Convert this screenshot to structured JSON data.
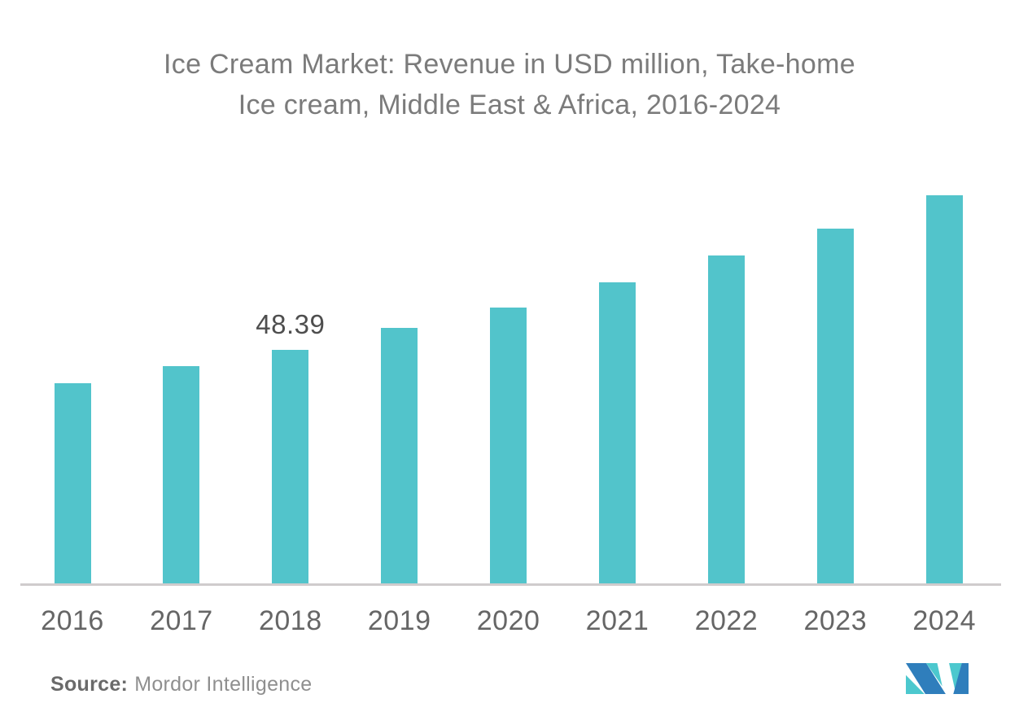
{
  "title": {
    "line1": "Ice Cream Market: Revenue in USD million, Take-home",
    "line2": "Ice cream, Middle East & Africa, 2016-2024"
  },
  "source": {
    "label": "Source:",
    "name": "Mordor Intelligence"
  },
  "logo": {
    "name": "mordor-intelligence-logo",
    "blue": "#2F7EBC",
    "teal": "#4CC8CE"
  },
  "chart_data": {
    "type": "bar",
    "title": "Ice Cream Market: Revenue in USD million, Take-home Ice cream, Middle East & Africa, 2016-2024",
    "categories": [
      "2016",
      "2017",
      "2018",
      "2019",
      "2020",
      "2021",
      "2022",
      "2023",
      "2024"
    ],
    "values": [
      41.5,
      45.0,
      48.39,
      52.9,
      57.1,
      62.3,
      67.9,
      73.4,
      80.3
    ],
    "data_labels": [
      {
        "index": 2,
        "text": "48.39"
      }
    ],
    "xlabel": "",
    "ylabel": "",
    "ylim": [
      0,
      94
    ],
    "grid": false,
    "legend": false,
    "bar_color": "#52C4CB"
  }
}
